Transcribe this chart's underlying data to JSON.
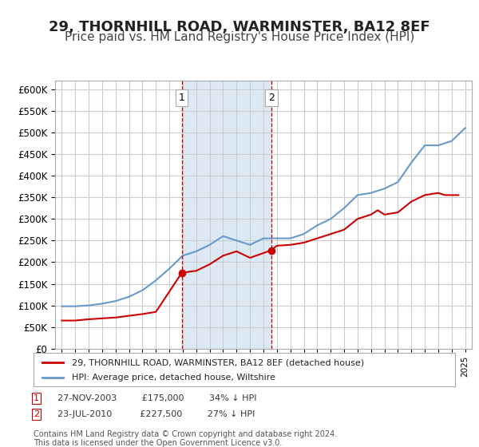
{
  "title": "29, THORNHILL ROAD, WARMINSTER, BA12 8EF",
  "subtitle": "Price paid vs. HM Land Registry's House Price Index (HPI)",
  "title_fontsize": 13,
  "subtitle_fontsize": 11,
  "bg_color": "#ffffff",
  "plot_bg_color": "#ffffff",
  "grid_color": "#cccccc",
  "shading_color": "#dce9f5",
  "red_color": "#cc0000",
  "blue_color": "#6699cc",
  "marker1_date_idx": 9.0,
  "marker2_date_idx": 15.5,
  "annotation1_label": "1",
  "annotation2_label": "2",
  "legend_line1": "29, THORNHILL ROAD, WARMINSTER, BA12 8EF (detached house)",
  "legend_line2": "HPI: Average price, detached house, Wiltshire",
  "note1": "1   27-NOV-2003   £175,000   34% ↓ HPI",
  "note2": "2   23-JUL-2010   £227,500   27% ↓ HPI",
  "footer": "Contains HM Land Registry data © Crown copyright and database right 2024.\nThis data is licensed under the Open Government Licence v3.0.",
  "ylim": [
    0,
    620000
  ],
  "yticks": [
    0,
    50000,
    100000,
    150000,
    200000,
    250000,
    300000,
    350000,
    400000,
    450000,
    500000,
    550000,
    600000
  ],
  "years_hpi": [
    1995,
    1996,
    1997,
    1998,
    1999,
    2000,
    2001,
    2002,
    2003,
    2004,
    2005,
    2006,
    2007,
    2008,
    2009,
    2010,
    2011,
    2012,
    2013,
    2014,
    2015,
    2016,
    2017,
    2018,
    2019,
    2020,
    2021,
    2022,
    2023,
    2024,
    2025
  ],
  "hpi_values": [
    98000,
    98000,
    100000,
    104000,
    110000,
    120000,
    135000,
    158000,
    185000,
    215000,
    225000,
    240000,
    260000,
    250000,
    240000,
    255000,
    255000,
    255000,
    265000,
    285000,
    300000,
    325000,
    355000,
    360000,
    370000,
    385000,
    430000,
    470000,
    470000,
    480000,
    510000
  ],
  "red_x": [
    1995.0,
    1996.0,
    1997.0,
    1998.0,
    1999.0,
    2000.0,
    2001.0,
    2002.0,
    2003.917,
    2004.5,
    2005.0,
    2006.0,
    2007.0,
    2008.0,
    2009.0,
    2010.583,
    2011.0,
    2012.0,
    2013.0,
    2014.0,
    2015.0,
    2016.0,
    2017.0,
    2018.0,
    2018.5,
    2019.0,
    2020.0,
    2021.0,
    2022.0,
    2023.0,
    2023.5,
    2024.0,
    2024.5
  ],
  "red_values": [
    65000,
    65000,
    68000,
    70000,
    72000,
    76000,
    80000,
    85000,
    175000,
    178000,
    180000,
    195000,
    215000,
    225000,
    210000,
    227500,
    238000,
    240000,
    245000,
    255000,
    265000,
    275000,
    300000,
    310000,
    320000,
    310000,
    315000,
    340000,
    355000,
    360000,
    355000,
    355000,
    355000
  ],
  "vline1_x": 2003.917,
  "vline2_x": 2010.583,
  "marker1_y": 175000,
  "marker2_y": 227500,
  "xlim": [
    1994.5,
    2025.5
  ]
}
